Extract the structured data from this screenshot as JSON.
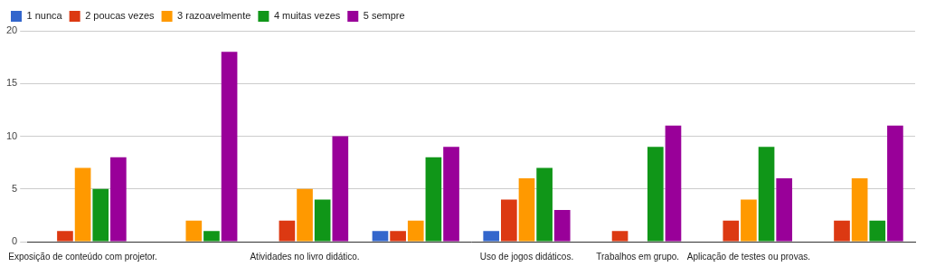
{
  "chart_data": {
    "type": "bar",
    "categories": [
      "Exposição de conteúdo com projetor.",
      null,
      "Atividades no livro didático.",
      null,
      "Uso de jogos didáticos.",
      "Trabalhos em grupo.",
      "Aplicação de testes ou provas.",
      null
    ],
    "series": [
      {
        "name": "1 nunca",
        "color": "#3366cc",
        "values": [
          0,
          0,
          0,
          1,
          1,
          0,
          0,
          0
        ]
      },
      {
        "name": "2 poucas vezes",
        "color": "#dc3912",
        "values": [
          1,
          0,
          2,
          1,
          4,
          1,
          2,
          2
        ]
      },
      {
        "name": "3 razoavelmente",
        "color": "#ff9900",
        "values": [
          7,
          2,
          5,
          2,
          6,
          0,
          4,
          6
        ]
      },
      {
        "name": "4 muitas vezes",
        "color": "#109618",
        "values": [
          5,
          1,
          4,
          8,
          7,
          9,
          9,
          2
        ]
      },
      {
        "name": "5 sempre",
        "color": "#990099",
        "values": [
          8,
          18,
          10,
          9,
          3,
          11,
          6,
          11
        ]
      }
    ],
    "ylim": [
      0,
      20
    ],
    "yticks": [
      0,
      5,
      10,
      15,
      20
    ],
    "grid": true,
    "legend": "top-left"
  }
}
